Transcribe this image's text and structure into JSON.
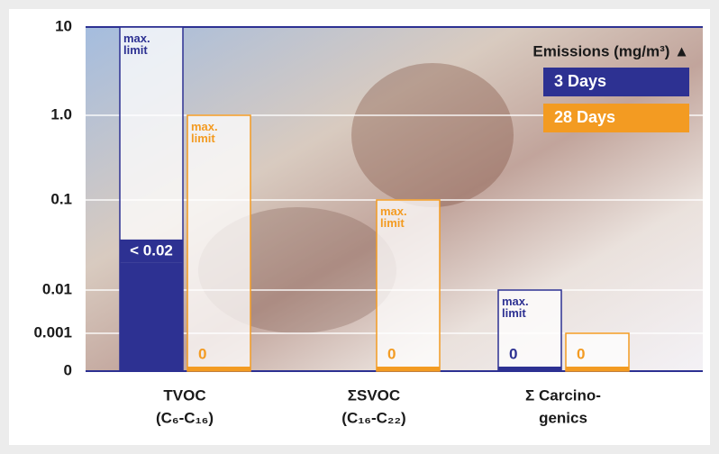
{
  "chart_data": {
    "type": "bar",
    "log": true,
    "grid": true,
    "legend_title": "Emissions (mg/m³) ▲",
    "categories": [
      [
        "TVOC",
        "(C₆-C₁₆)"
      ],
      [
        "ΣSVOC",
        "(C₁₆-C₂₂)"
      ],
      [
        "Σ Carcino-",
        "genics"
      ]
    ],
    "ylim": [
      0,
      10
    ],
    "yticks": [
      10,
      {
        "value": 1,
        "label": "1.0"
      },
      0.1,
      0.01,
      0.001,
      0
    ],
    "series": [
      {
        "name": "3 Days",
        "color": "#2d3192",
        "values": [
          0.02,
          null,
          0
        ],
        "value_labels": [
          "< 0.02",
          null,
          "0"
        ],
        "limits": [
          10,
          null,
          0.01
        ],
        "limit_labels": [
          "max. limit",
          null,
          "max. limit"
        ]
      },
      {
        "name": "28 Days",
        "color": "#f39b22",
        "values": [
          0,
          0,
          0
        ],
        "value_labels": [
          "0",
          "0",
          "0"
        ],
        "limits": [
          1,
          0.1,
          0.001
        ],
        "limit_labels": [
          "max. limit",
          "max. limit",
          null
        ]
      }
    ]
  }
}
